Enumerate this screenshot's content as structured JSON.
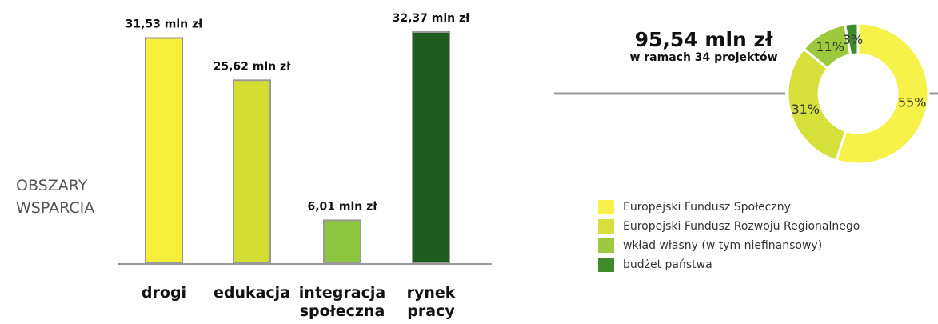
{
  "chart_data": [
    {
      "type": "bar",
      "categories": [
        [
          "drogi"
        ],
        [
          "edukacja"
        ],
        [
          "integracja",
          "społeczna"
        ],
        [
          "rynek",
          "pracy"
        ]
      ],
      "values": [
        31.53,
        25.62,
        6.01,
        32.37
      ],
      "value_labels": [
        "31,53 mln zł",
        "25,62 mln zł",
        "6,01 mln zł",
        "32,37 mln zł"
      ],
      "colors": [
        "#f4f03a",
        "#d2df32",
        "#8ec63f",
        "#1f5c1f"
      ],
      "side_label": [
        "OBSZARY",
        "WSPARCIA"
      ],
      "grid": false
    },
    {
      "type": "pie",
      "donut": true,
      "total_value": "95,54 mln zł",
      "total_subtitle": "w ramach 34 projektów",
      "labels": [
        "Europejski Fundusz Społeczny",
        "Europejski Fundusz Rozwoju Regionalnego",
        "wkład własny (w tym niefinansowy)",
        "budżet państwa"
      ],
      "values": [
        55,
        31,
        11,
        3
      ],
      "value_labels": [
        "55%",
        "31%",
        "11%",
        "3%"
      ],
      "colors": [
        "#f6f24a",
        "#d6e03a",
        "#9cc93e",
        "#3f8a2b"
      ],
      "legend_position": "below"
    }
  ]
}
